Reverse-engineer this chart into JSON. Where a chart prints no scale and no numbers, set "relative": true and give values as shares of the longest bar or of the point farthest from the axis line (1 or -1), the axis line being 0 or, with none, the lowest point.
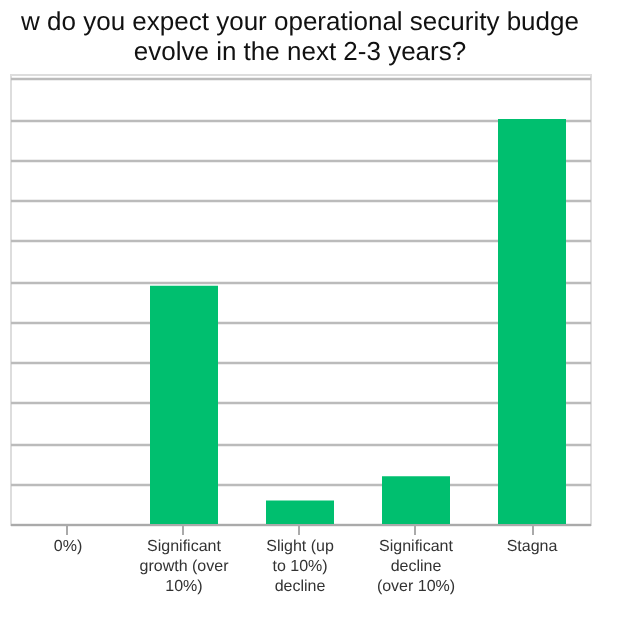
{
  "chart_data": {
    "type": "bar",
    "title": [
      "w do you expect your operational security budge",
      "evolve in the next 2-3 years?"
    ],
    "categories": [
      "0%)",
      "Significant growth (over 10%)",
      "Slight (up to 10%) decline",
      "Significant decline (over 10%)",
      "Stagna"
    ],
    "values": [
      null,
      0.588,
      0.058,
      0.118,
      1
    ],
    "color": "#00bf6f",
    "relative": true,
    "grid": "y"
  }
}
